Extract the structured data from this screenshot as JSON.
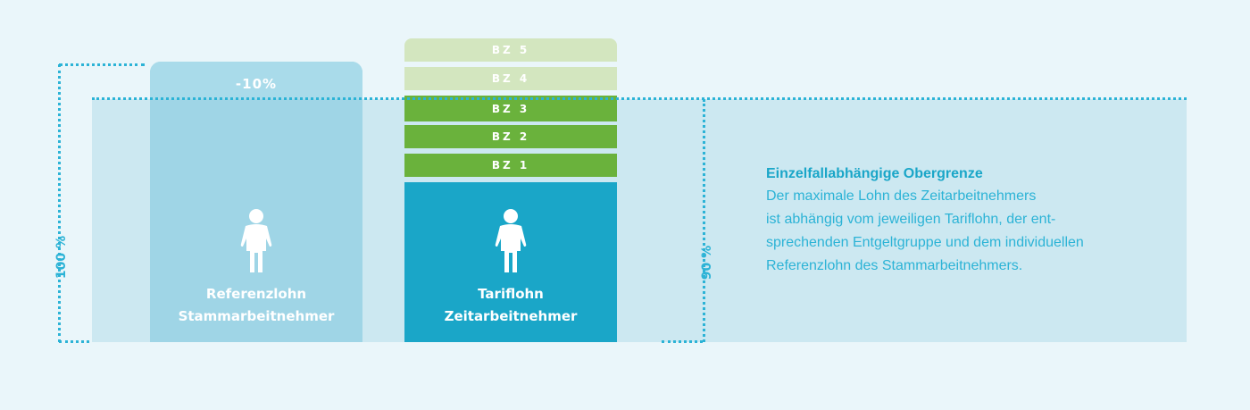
{
  "reference": {
    "minus_label": "-10%",
    "label_line1": "Referenzlohn",
    "label_line2": "Stammarbeitnehmer"
  },
  "tariff": {
    "label_line1": "Tariflohn",
    "label_line2": "Zeitarbeitnehmer",
    "levels": [
      "BZ 5",
      "BZ 4",
      "BZ 3",
      "BZ 2",
      "BZ 1"
    ]
  },
  "markers": {
    "hundred": "100 %",
    "ninety": "90 %"
  },
  "description": {
    "title": "Einzelfallabhängige Obergrenze",
    "lines": [
      "Der maximale Lohn des Zeitarbeitnehmers",
      "ist abhängig vom jeweiligen Tariflohn, der ent-",
      "sprechenden Entgeltgruppe und dem individuellen",
      "Referenzlohn des Stammarbeitnehmers."
    ]
  },
  "colors": {
    "accent_blue": "#1aa6c8",
    "light_blue": "#9fd5e6",
    "band": "#cce8f1",
    "green_dark": "#6ab23c",
    "green_light": "#d3e6bf",
    "dotted": "#2cb3d6"
  },
  "icons": [
    "person-icon",
    "person-icon"
  ]
}
